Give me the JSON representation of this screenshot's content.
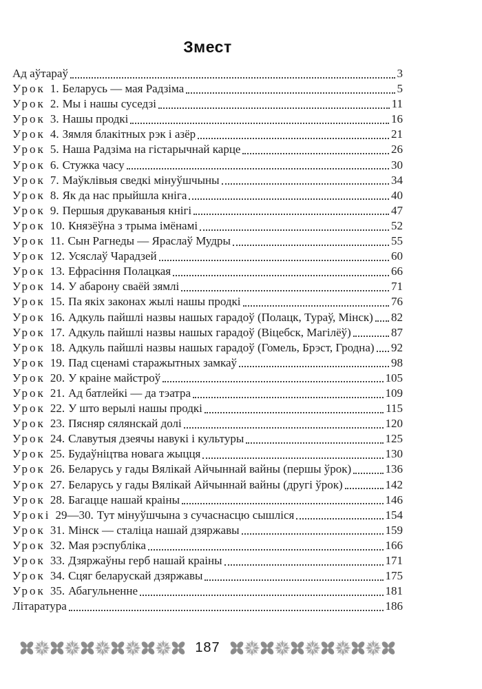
{
  "page": {
    "title": "Змест"
  },
  "toc": {
    "entries": [
      {
        "prefix": "",
        "num": "",
        "title": "Ад аўтараў",
        "page": "3"
      },
      {
        "prefix": "Урок",
        "num": "1.",
        "title": "Беларусь — мая Радзіма",
        "page": "5"
      },
      {
        "prefix": "Урок",
        "num": "2.",
        "title": "Мы і нашы суседзі",
        "page": "11"
      },
      {
        "prefix": "Урок",
        "num": "3.",
        "title": "Нашы продкі",
        "page": "16"
      },
      {
        "prefix": "Урок",
        "num": "4.",
        "title": "Зямля блакітных рэк і азёр",
        "page": "21"
      },
      {
        "prefix": "Урок",
        "num": "5.",
        "title": "Наша Радзіма на гістарычнай карце",
        "page": "26"
      },
      {
        "prefix": "Урок",
        "num": "6.",
        "title": "Стужка часу",
        "page": "30"
      },
      {
        "prefix": "Урок",
        "num": "7.",
        "title": "Маўклівыя сведкі мінуўшчыны",
        "page": "34"
      },
      {
        "prefix": "Урок",
        "num": "8.",
        "title": "Як да нас прыйшла кніга",
        "page": "40"
      },
      {
        "prefix": "Урок",
        "num": "9.",
        "title": "Першыя друкаваныя кнігі",
        "page": "47"
      },
      {
        "prefix": "Урок",
        "num": "10.",
        "title": "Князёўна з трыма імёнамі",
        "page": "52"
      },
      {
        "prefix": "Урок",
        "num": "11.",
        "title": "Сын Рагнеды — Яраслаў Мудры",
        "page": "55"
      },
      {
        "prefix": "Урок",
        "num": "12.",
        "title": "Усяслаў Чарадзей",
        "page": "60"
      },
      {
        "prefix": "Урок",
        "num": "13.",
        "title": "Ефрасіння Полацкая",
        "page": "66"
      },
      {
        "prefix": "Урок",
        "num": "14.",
        "title": "У абарону сваёй зямлі",
        "page": "71"
      },
      {
        "prefix": "Урок",
        "num": "15.",
        "title": "Па якіх законах жылі нашы продкі",
        "page": "76"
      },
      {
        "prefix": "Урок",
        "num": "16.",
        "title": "Адкуль пайшлі назвы нашых гарадоў (Полацк, Тураў, Мінск)",
        "page": "82"
      },
      {
        "prefix": "Урок",
        "num": "17.",
        "title": "Адкуль пайшлі назвы нашых гарадоў (Віцебск, Магілёў)",
        "page": "87"
      },
      {
        "prefix": "Урок",
        "num": "18.",
        "title": "Адкуль пайшлі назвы нашых гарадоў (Гомель, Брэст, Гродна)",
        "page": "92"
      },
      {
        "prefix": "Урок",
        "num": "19.",
        "title": "Пад сценамі старажытных замкаў",
        "page": "98"
      },
      {
        "prefix": "Урок",
        "num": "20.",
        "title": "У краіне майстроў",
        "page": "105"
      },
      {
        "prefix": "Урок",
        "num": "21.",
        "title": "Ад батлейкі — да тэатра",
        "page": "109"
      },
      {
        "prefix": "Урок",
        "num": "22.",
        "title": "У што верылі нашы продкі",
        "page": "115"
      },
      {
        "prefix": "Урок",
        "num": "23.",
        "title": "Пясняр сялянскай долі",
        "page": "120"
      },
      {
        "prefix": "Урок",
        "num": "24.",
        "title": "Славутыя дзеячы навукі і культуры",
        "page": "125"
      },
      {
        "prefix": "Урок",
        "num": "25.",
        "title": "Будаўніцтва новага жыцця",
        "page": "130"
      },
      {
        "prefix": "Урок",
        "num": "26.",
        "title": "Беларусь у гады Вялікай Айчыннай вайны (першы ўрок)",
        "page": "136"
      },
      {
        "prefix": "Урок",
        "num": "27.",
        "title": "Беларусь у гады Вялікай Айчыннай вайны (другі ўрок)",
        "page": "142"
      },
      {
        "prefix": "Урок",
        "num": "28.",
        "title": "Багацце нашай краіны",
        "page": "146"
      },
      {
        "prefix": "Урокі",
        "num": "29—30.",
        "title": "Тут мінуўшчына з сучаснасцю сышліся",
        "page": "154"
      },
      {
        "prefix": "Урок",
        "num": "31.",
        "title": "Мінск — сталіца нашай дзяржавы",
        "page": "159"
      },
      {
        "prefix": "Урок",
        "num": "32.",
        "title": "Мая рэспубліка",
        "page": "166"
      },
      {
        "prefix": "Урок",
        "num": "33.",
        "title": "Дзяржаўны герб нашай краіны",
        "page": "171"
      },
      {
        "prefix": "Урок",
        "num": "34.",
        "title": "Сцяг беларускай дзяржавы",
        "page": "175"
      },
      {
        "prefix": "Урок",
        "num": "35.",
        "title": "Абагульненне",
        "page": "181"
      },
      {
        "prefix": "",
        "num": "",
        "title": "Літаратура",
        "page": "186"
      }
    ]
  },
  "footer": {
    "page_number": "187",
    "ornaments_left": [
      "x",
      "flower",
      "x",
      "flower",
      "x",
      "flower",
      "x",
      "flower",
      "x",
      "flower",
      "x"
    ],
    "ornaments_right": [
      "x",
      "flower",
      "x",
      "flower",
      "x",
      "flower",
      "x",
      "flower",
      "x",
      "flower",
      "x"
    ]
  },
  "colors": {
    "text": "#1e1e1e",
    "ornament_x": "#8c8c8c",
    "ornament_flower": "#a8a8a8",
    "dot_leader": "#3f3f3f"
  }
}
